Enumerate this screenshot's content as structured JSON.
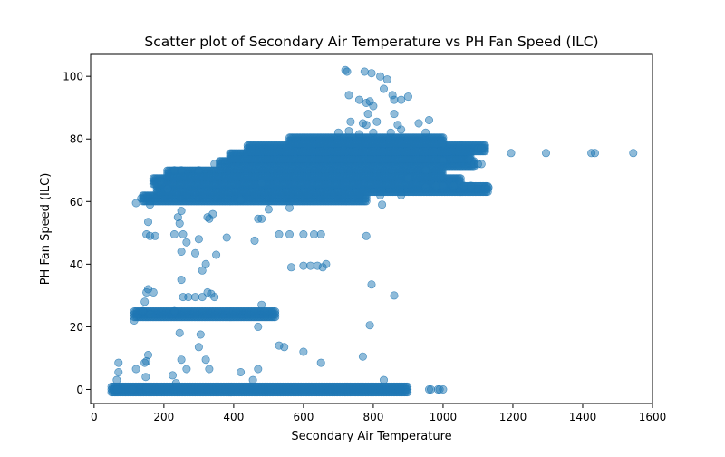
{
  "chart_data": {
    "type": "scatter",
    "title": "Scatter plot of Secondary Air Temperature vs PH Fan Speed (ILC)",
    "xlabel": "Secondary Air Temperature",
    "ylabel": "PH Fan Speed (ILC)",
    "xlim": [
      -10,
      1600
    ],
    "ylim": [
      -4.5,
      107
    ],
    "xticks": [
      0,
      200,
      400,
      600,
      800,
      1000,
      1200,
      1400,
      1600
    ],
    "yticks": [
      0,
      20,
      40,
      60,
      80,
      100
    ],
    "grid": false,
    "legend": "none",
    "marker_color": "#1f77b4",
    "marker_alpha": 0.5,
    "dense_bands": [
      {
        "y": 0,
        "x": [
          50,
          900
        ]
      },
      {
        "y": 24,
        "x": [
          115,
          520
        ]
      },
      {
        "y": 61,
        "x": [
          140,
          780
        ]
      },
      {
        "y": 64,
        "x": [
          180,
          1130
        ]
      },
      {
        "y": 66.5,
        "x": [
          170,
          1050
        ]
      },
      {
        "y": 69,
        "x": [
          210,
          1000
        ]
      },
      {
        "y": 72,
        "x": [
          360,
          1090
        ]
      },
      {
        "y": 74.5,
        "x": [
          390,
          1080
        ]
      },
      {
        "y": 77,
        "x": [
          440,
          1120
        ]
      },
      {
        "y": 79.5,
        "x": [
          560,
          1000
        ]
      }
    ],
    "points": [
      [
        55,
        0
      ],
      [
        65,
        0
      ],
      [
        110,
        0
      ],
      [
        70,
        5.5
      ],
      [
        70,
        8.5
      ],
      [
        65,
        3
      ],
      [
        150,
        0.5
      ],
      [
        148,
        4
      ],
      [
        145,
        8.5
      ],
      [
        155,
        11
      ],
      [
        150,
        9
      ],
      [
        120,
        6.5
      ],
      [
        115,
        22
      ],
      [
        140,
        25
      ],
      [
        155,
        32
      ],
      [
        150,
        31
      ],
      [
        145,
        28
      ],
      [
        170,
        31
      ],
      [
        160,
        24
      ],
      [
        150,
        49.5
      ],
      [
        160,
        49
      ],
      [
        175,
        49
      ],
      [
        155,
        53.5
      ],
      [
        225,
        4.5
      ],
      [
        235,
        2
      ],
      [
        250,
        9.5
      ],
      [
        265,
        6.5
      ],
      [
        300,
        13.5
      ],
      [
        305,
        17.5
      ],
      [
        320,
        9.5
      ],
      [
        330,
        6.5
      ],
      [
        245,
        18
      ],
      [
        230,
        25
      ],
      [
        250,
        35
      ],
      [
        255,
        29.5
      ],
      [
        270,
        29.5
      ],
      [
        290,
        29.5
      ],
      [
        310,
        29.5
      ],
      [
        325,
        31
      ],
      [
        335,
        30.5
      ],
      [
        345,
        29.5
      ],
      [
        310,
        38
      ],
      [
        320,
        40
      ],
      [
        290,
        43.5
      ],
      [
        350,
        43
      ],
      [
        250,
        44
      ],
      [
        300,
        48
      ],
      [
        230,
        49.5
      ],
      [
        255,
        49.5
      ],
      [
        240,
        55
      ],
      [
        250,
        57
      ],
      [
        245,
        53
      ],
      [
        325,
        55
      ],
      [
        330,
        54.5
      ],
      [
        340,
        56
      ],
      [
        265,
        47
      ],
      [
        380,
        48.5
      ],
      [
        420,
        5.5
      ],
      [
        470,
        6.5
      ],
      [
        455,
        3
      ],
      [
        480,
        27
      ],
      [
        470,
        20
      ],
      [
        460,
        47.5
      ],
      [
        470,
        54.5
      ],
      [
        480,
        54.5
      ],
      [
        530,
        49.5
      ],
      [
        560,
        49.5
      ],
      [
        600,
        49.5
      ],
      [
        630,
        49.5
      ],
      [
        650,
        49.5
      ],
      [
        530,
        14
      ],
      [
        545,
        13.5
      ],
      [
        600,
        12
      ],
      [
        650,
        8.5
      ],
      [
        565,
        39
      ],
      [
        600,
        39.5
      ],
      [
        620,
        39.5
      ],
      [
        640,
        39.5
      ],
      [
        655,
        39
      ],
      [
        665,
        40
      ],
      [
        770,
        10.5
      ],
      [
        790,
        20.5
      ],
      [
        795,
        33.5
      ],
      [
        780,
        49
      ],
      [
        830,
        3
      ],
      [
        860,
        30
      ],
      [
        825,
        59
      ],
      [
        820,
        62
      ],
      [
        960,
        0
      ],
      [
        965,
        0
      ],
      [
        985,
        0
      ],
      [
        990,
        0
      ],
      [
        1000,
        0
      ],
      [
        950,
        64.5
      ],
      [
        980,
        65
      ],
      [
        1000,
        65
      ],
      [
        1030,
        65
      ],
      [
        1060,
        65
      ],
      [
        1080,
        65
      ],
      [
        1120,
        64.5
      ],
      [
        1130,
        64.5
      ],
      [
        1090,
        72
      ],
      [
        1100,
        72
      ],
      [
        1110,
        72
      ],
      [
        1195,
        75.5
      ],
      [
        1295,
        75.5
      ],
      [
        1425,
        75.5
      ],
      [
        1435,
        75.5
      ],
      [
        1545,
        75.5
      ],
      [
        1100,
        77
      ],
      [
        1110,
        77
      ],
      [
        720,
        102
      ],
      [
        725,
        101.5
      ],
      [
        775,
        101.5
      ],
      [
        795,
        101
      ],
      [
        820,
        100
      ],
      [
        840,
        99
      ],
      [
        830,
        96
      ],
      [
        855,
        94
      ],
      [
        860,
        92.5
      ],
      [
        880,
        92.5
      ],
      [
        900,
        93.5
      ],
      [
        730,
        94
      ],
      [
        760,
        92.5
      ],
      [
        780,
        91.5
      ],
      [
        790,
        92
      ],
      [
        800,
        90.5
      ],
      [
        785,
        88
      ],
      [
        770,
        85
      ],
      [
        780,
        84.5
      ],
      [
        735,
        85.5
      ],
      [
        810,
        85.5
      ],
      [
        860,
        88
      ],
      [
        870,
        84.5
      ],
      [
        880,
        83
      ],
      [
        930,
        85
      ],
      [
        960,
        86
      ],
      [
        850,
        82
      ],
      [
        800,
        82
      ],
      [
        760,
        81.5
      ],
      [
        700,
        82
      ],
      [
        730,
        82.5
      ],
      [
        950,
        82
      ],
      [
        120,
        59.5
      ],
      [
        135,
        61
      ],
      [
        160,
        59
      ],
      [
        190,
        66.5
      ],
      [
        210,
        64
      ],
      [
        230,
        70
      ],
      [
        250,
        70
      ],
      [
        300,
        70
      ],
      [
        345,
        72
      ],
      [
        480,
        66
      ],
      [
        500,
        57.5
      ],
      [
        560,
        58
      ],
      [
        420,
        60.5
      ],
      [
        900,
        67.5
      ],
      [
        880,
        62
      ],
      [
        950,
        70
      ],
      [
        1000,
        73
      ]
    ]
  }
}
